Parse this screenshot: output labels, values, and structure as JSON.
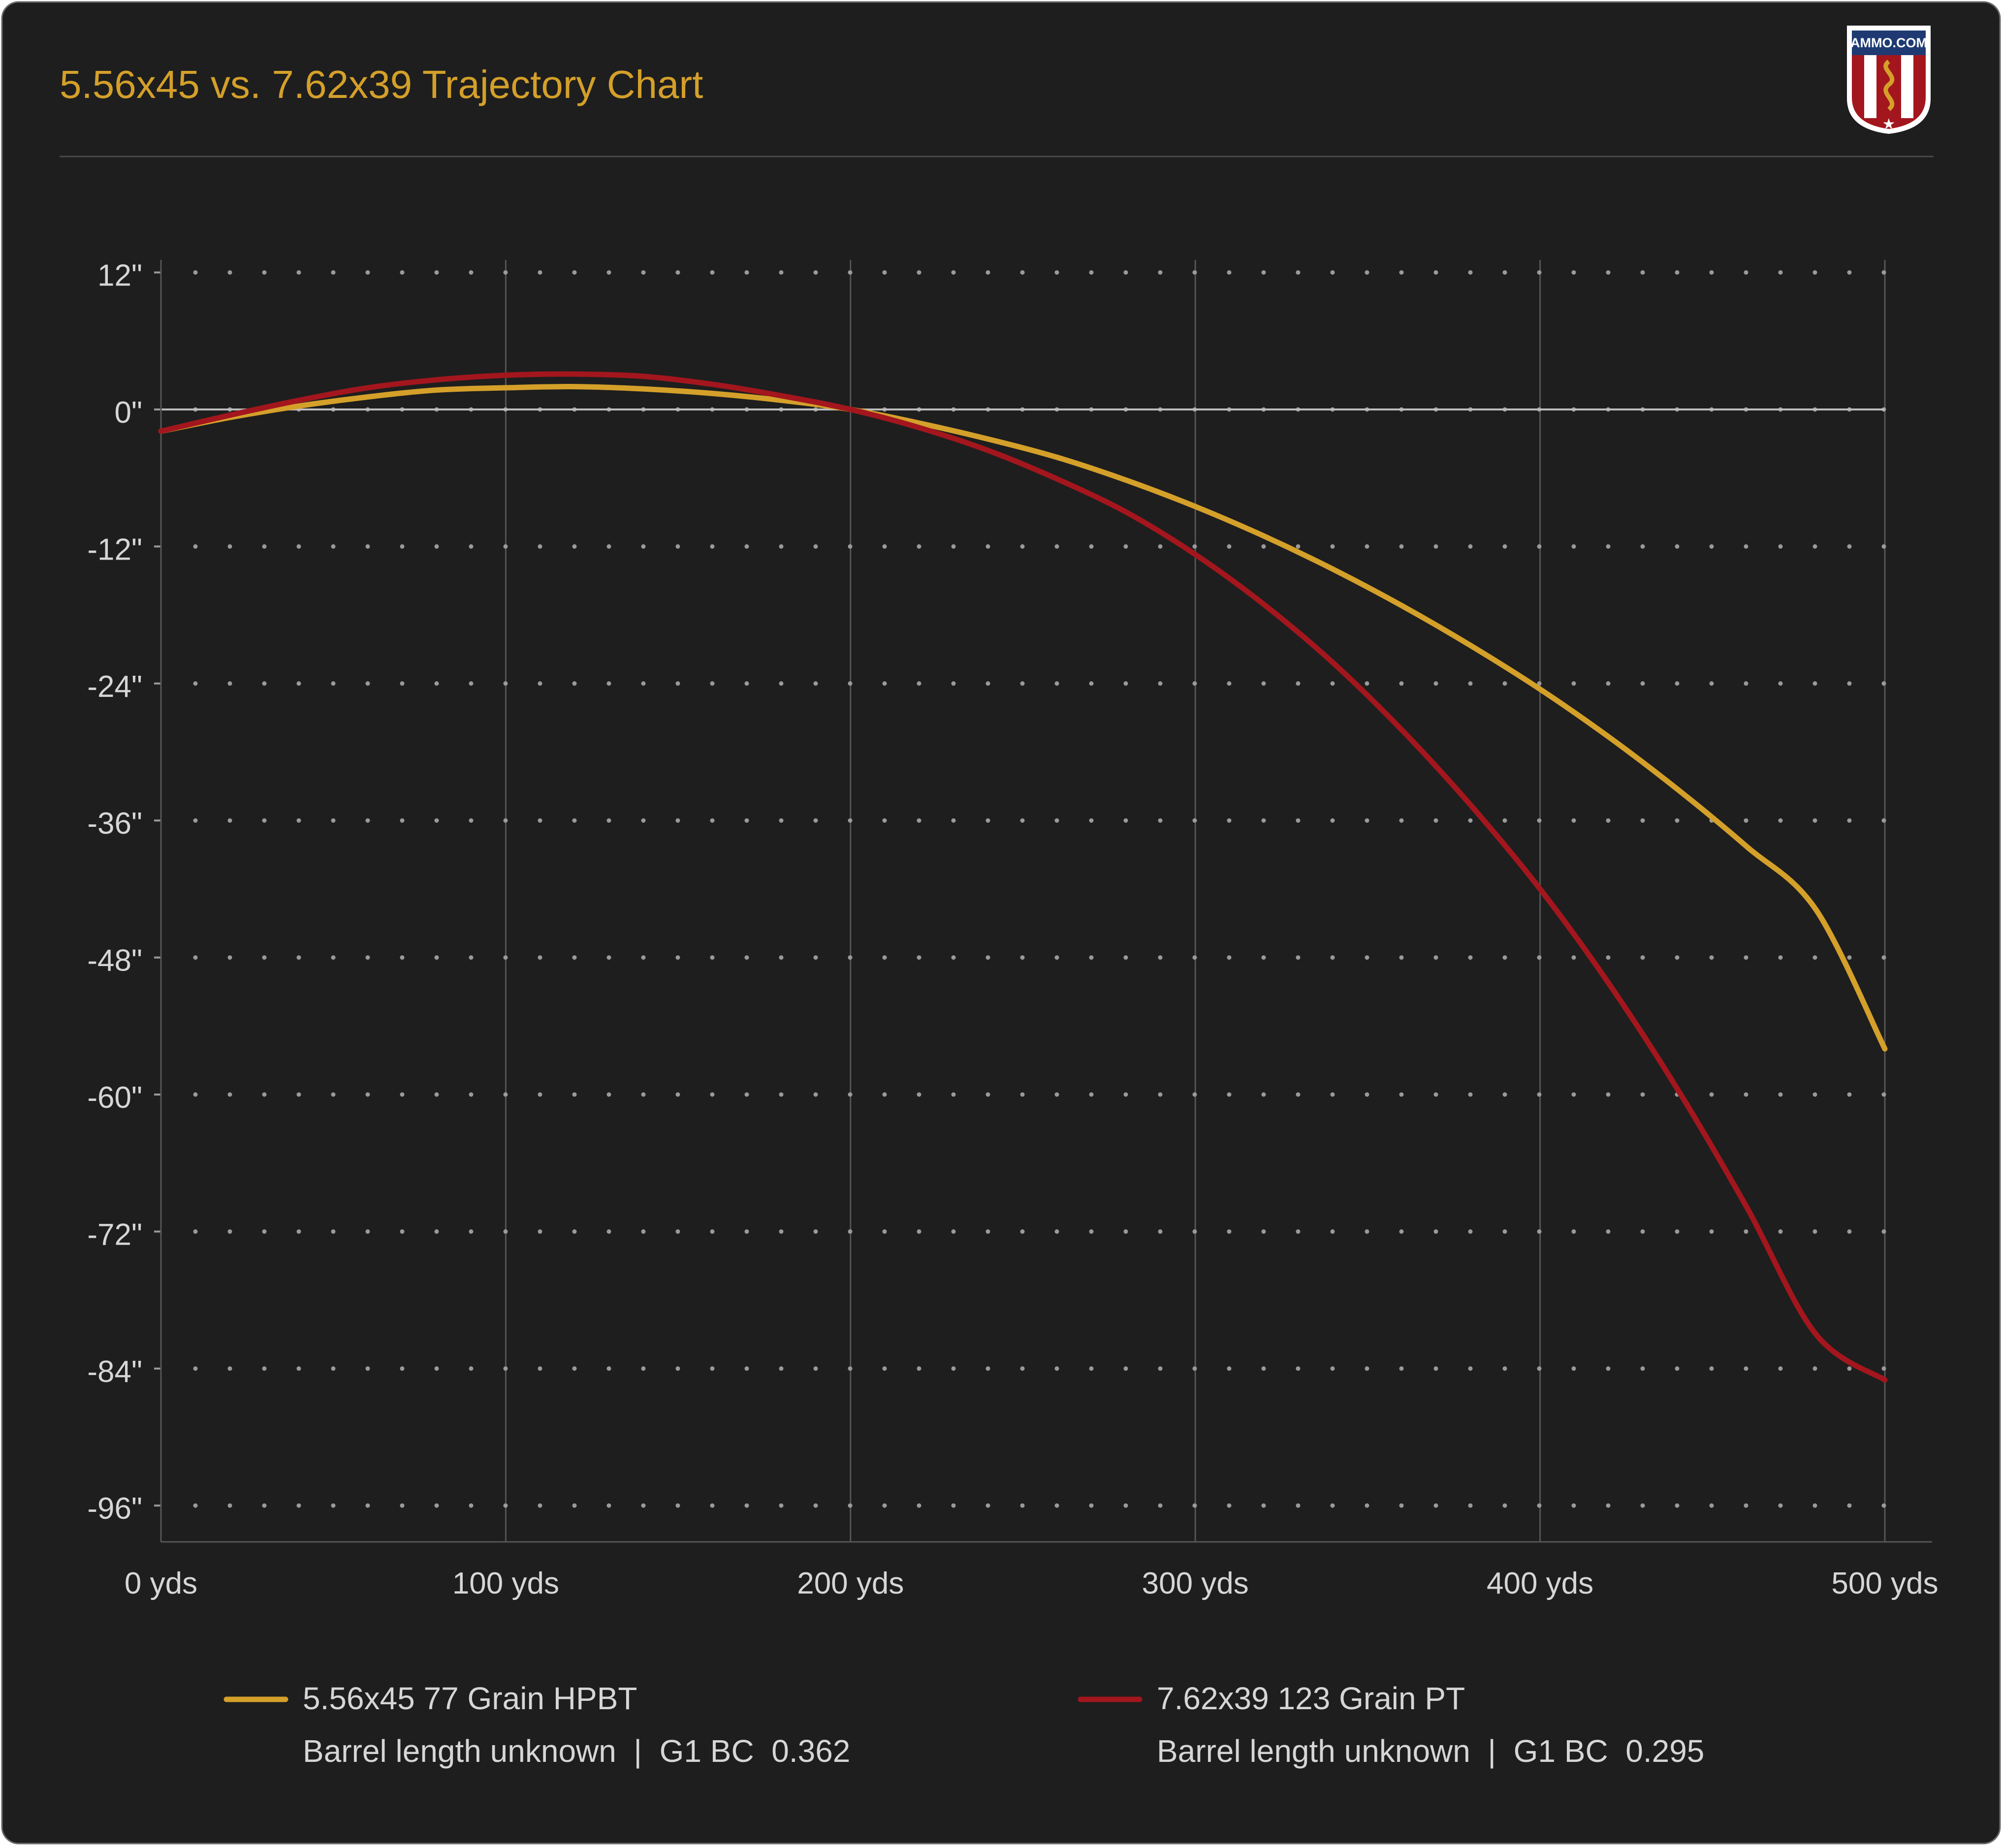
{
  "page": {
    "background": "#ffffff",
    "card_background": "#1e1e1e",
    "card_border": "#6a6a6a"
  },
  "header": {
    "title": "5.56x45 vs. 7.62x39 Trajectory Chart",
    "title_color": "#d4a02a",
    "logo_text": "AMMO.COM"
  },
  "colors": {
    "grid_line": "#555555",
    "grid_dot": "#9a9a9a",
    "zero_line": "#bdbdbd",
    "tick_text": "#d6d6d6",
    "legend_text": "#d6d6d6"
  },
  "chart_data": {
    "type": "line",
    "title": "5.56x45 vs. 7.62x39 Trajectory Chart",
    "xlabel": "",
    "ylabel": "",
    "x": [
      0,
      20,
      40,
      60,
      80,
      100,
      120,
      140,
      160,
      180,
      200,
      220,
      240,
      260,
      280,
      300,
      320,
      340,
      360,
      380,
      400,
      420,
      440,
      460,
      480,
      500
    ],
    "xlim": [
      0,
      500
    ],
    "ylim": [
      -100,
      12
    ],
    "x_ticks": [
      0,
      100,
      200,
      300,
      400,
      500
    ],
    "x_tick_labels": [
      "0 yds",
      "100 yds",
      "200 yds",
      "300 yds",
      "400 yds",
      "500 yds"
    ],
    "y_ticks": [
      12,
      0,
      -12,
      -24,
      -36,
      -48,
      -60,
      -72,
      -84,
      -96
    ],
    "y_tick_labels": [
      "12\"",
      "0\"",
      "-12\"",
      "-24\"",
      "-36\"",
      "-48\"",
      "-60\"",
      "-72\"",
      "-84\"",
      "-96\""
    ],
    "grid": true,
    "legend_position": "bottom",
    "series": [
      {
        "name": "5.56x45 77 Grain HPBT",
        "detail": "Barrel length unknown  |  G1 BC  0.362",
        "color": "#d4a02a",
        "values": [
          -1.9,
          -0.7,
          0.3,
          1.1,
          1.7,
          1.9,
          2.0,
          1.8,
          1.4,
          0.8,
          0.0,
          -1.2,
          -2.6,
          -4.2,
          -6.2,
          -8.5,
          -11.1,
          -14.0,
          -17.2,
          -20.7,
          -24.5,
          -28.7,
          -33.3,
          -38.3,
          -43.8,
          -56.0
        ]
      },
      {
        "name": "7.62x39 123 Grain PT",
        "detail": "Barrel length unknown  |  G1 BC  0.295",
        "color": "#a3161d",
        "values": [
          -1.9,
          -0.5,
          0.8,
          1.9,
          2.6,
          3.0,
          3.1,
          2.9,
          2.2,
          1.2,
          0.0,
          -1.6,
          -3.6,
          -6.1,
          -9.0,
          -12.7,
          -17.1,
          -22.2,
          -28.1,
          -34.7,
          -42.0,
          -50.3,
          -59.6,
          -69.9,
          -81.0,
          -85.0
        ]
      }
    ]
  }
}
